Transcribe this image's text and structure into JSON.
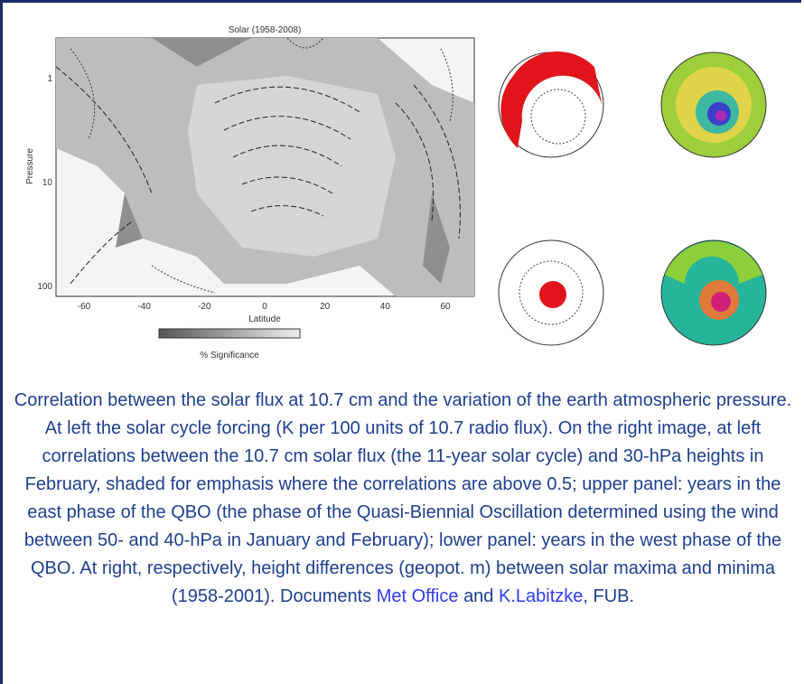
{
  "figure": {
    "left_panel": {
      "y_label": "Pressure",
      "x_label": "Latitude",
      "x_ticks": [
        "-60",
        "-40",
        "-20",
        "0",
        "20",
        "40",
        "60"
      ],
      "y_ticks": [
        "1",
        "10",
        "100"
      ],
      "colorbar_label": "% Significance"
    }
  },
  "caption": {
    "text": "Correlation between the solar flux at 10.7 cm and the variation of the earth atmospheric pressure. At left the solar cycle forcing (K per 100 units of 10.7 radio flux). On the right image, at left correlations between the 10.7 cm solar flux (the 11-year solar cycle) and 30-hPa heights in February, shaded for emphasis where the correlations are above 0.5; upper panel: years in the east phase of the QBO (the phase of the Quasi-Biennial Oscillation determined using the wind between 50- and 40-hPa in January and February); lower panel: years in the west phase of the QBO. At right, respectively, height differences (geopot. m) between solar maxima and minima (1958-2001). Documents",
    "link1": "Met Office",
    "joiner": "and",
    "link2": "K.Labitzke,",
    "end": "FUB."
  }
}
